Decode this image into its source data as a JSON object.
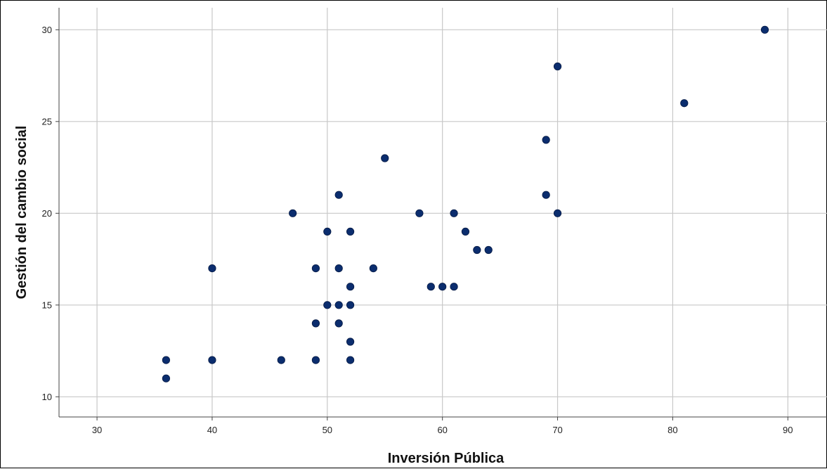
{
  "chart_data": {
    "type": "scatter",
    "title": "",
    "xlabel": "Inversión Pública",
    "ylabel": "Gestión del cambio social",
    "xlim": [
      26.7,
      93.4
    ],
    "ylim": [
      8.9,
      31.2
    ],
    "xticks": [
      30,
      40,
      50,
      60,
      70,
      80,
      90
    ],
    "yticks": [
      10,
      15,
      20,
      25,
      30
    ],
    "grid": true,
    "marker_color": "#0b2d6e",
    "series": [
      {
        "points": [
          [
            36,
            12
          ],
          [
            36,
            11
          ],
          [
            40,
            17
          ],
          [
            40,
            12
          ],
          [
            46,
            12
          ],
          [
            47,
            20
          ],
          [
            49,
            17
          ],
          [
            49,
            14
          ],
          [
            49,
            12
          ],
          [
            50,
            19
          ],
          [
            50,
            15
          ],
          [
            51,
            21
          ],
          [
            51,
            17
          ],
          [
            51,
            15
          ],
          [
            51,
            14
          ],
          [
            52,
            19
          ],
          [
            52,
            16
          ],
          [
            52,
            15
          ],
          [
            52,
            13
          ],
          [
            52,
            12
          ],
          [
            54,
            17
          ],
          [
            55,
            23
          ],
          [
            58,
            20
          ],
          [
            59,
            16
          ],
          [
            60,
            16
          ],
          [
            61,
            20
          ],
          [
            61,
            16
          ],
          [
            62,
            19
          ],
          [
            63,
            18
          ],
          [
            64,
            18
          ],
          [
            69,
            24
          ],
          [
            69,
            21
          ],
          [
            70,
            28
          ],
          [
            70,
            20
          ],
          [
            81,
            26
          ],
          [
            88,
            30
          ]
        ]
      }
    ]
  }
}
